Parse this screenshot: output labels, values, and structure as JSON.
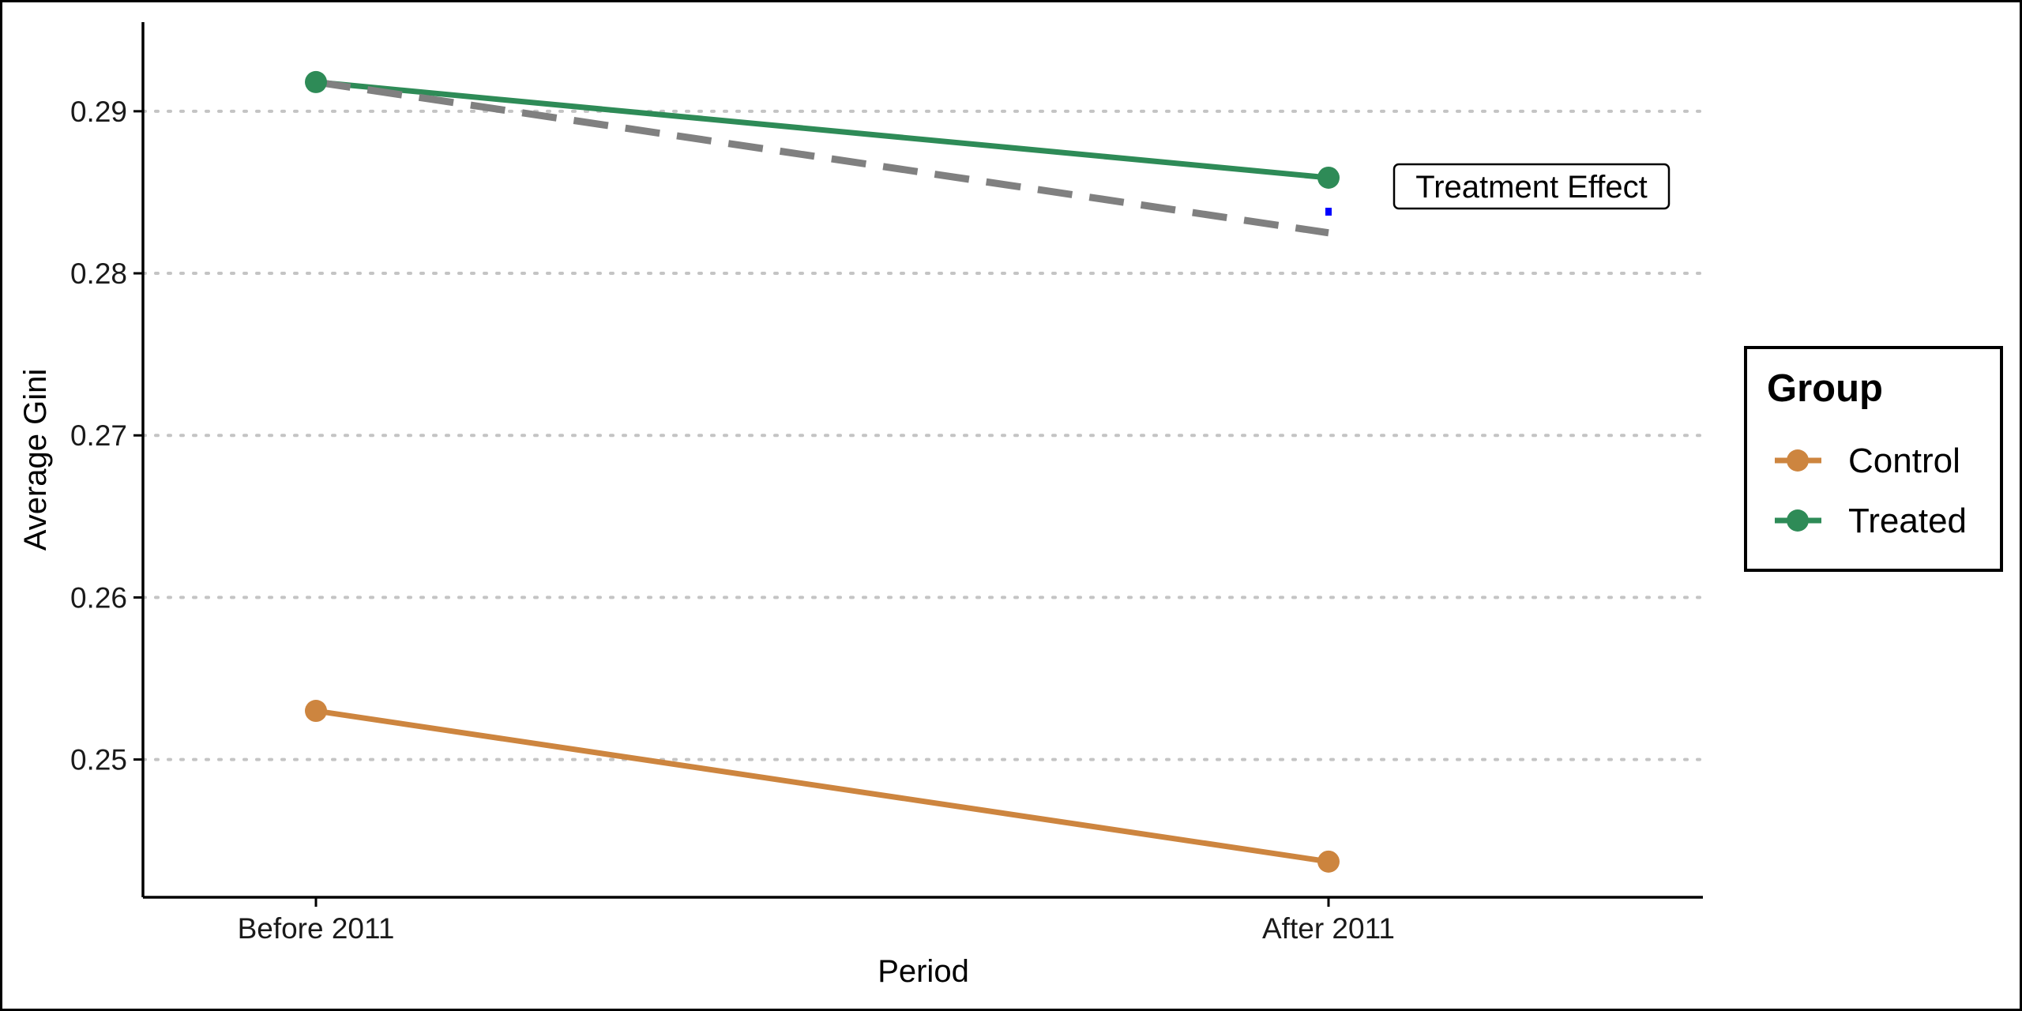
{
  "chart_data": {
    "type": "line",
    "title": "",
    "xlabel": "Period",
    "ylabel": "Average Gini",
    "categories": [
      "Before 2011",
      "After 2011"
    ],
    "ylim": [
      0.2415,
      0.2955
    ],
    "yticks": [
      0.25,
      0.26,
      0.27,
      0.28,
      0.29
    ],
    "ytick_labels": [
      "0.25",
      "0.26",
      "0.27",
      "0.28",
      "0.29"
    ],
    "grid": "horizontal dotted",
    "series": [
      {
        "name": "Control",
        "color": "#CD853F",
        "values": [
          0.253,
          0.2437
        ]
      },
      {
        "name": "Treated",
        "color": "#2E8B57",
        "values": [
          0.2918,
          0.2859
        ]
      }
    ],
    "counterfactual": {
      "style": "dashed",
      "color": "#808080",
      "values": [
        0.2918,
        0.2825
      ]
    },
    "effect_segment": {
      "style": "dotted",
      "color": "#0000FF",
      "category": "After 2011",
      "from": 0.2859,
      "to": 0.2825
    },
    "annotation": {
      "text": "Treatment Effect"
    },
    "legend": {
      "title": "Group",
      "placement": "right"
    }
  }
}
